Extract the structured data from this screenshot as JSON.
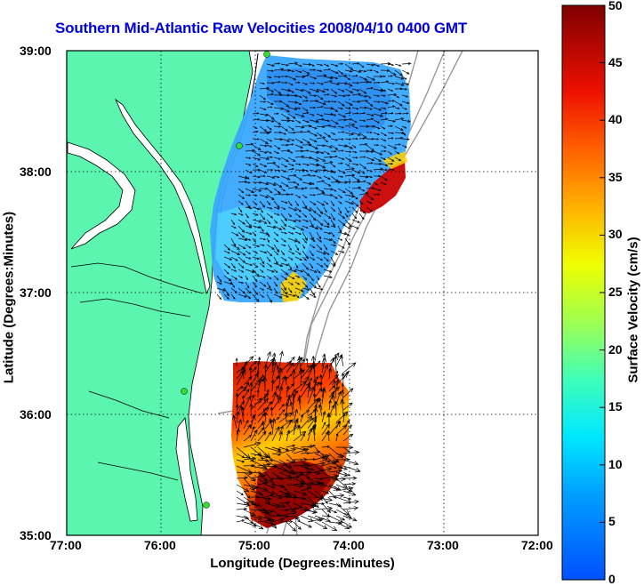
{
  "title": "Southern Mid-Atlantic Raw Velocities 2008/04/10 0400 GMT",
  "map": {
    "xlabel": "Longitude (Degrees:Minutes)",
    "ylabel": "Latitude (Degrees:Minutes)",
    "lon_range": [
      -77,
      -72
    ],
    "lat_range": [
      35,
      39
    ],
    "lon_ticks": [
      "77:00",
      "76:00",
      "75:00",
      "74:00",
      "73:00",
      "72:00"
    ],
    "lat_ticks": [
      "39:00",
      "38:00",
      "37:00",
      "36:00",
      "35:00"
    ],
    "grid": "dotted",
    "land_color": "#5cf5b0",
    "colors": {
      "frame": "#000000",
      "bathymetry": "#999999",
      "station": "#33dd33"
    }
  },
  "colorbar": {
    "label": "Surface Velocity (cm/s)",
    "min": 0,
    "max": 50,
    "ticks": [
      "0",
      "5",
      "10",
      "15",
      "20",
      "25",
      "30",
      "35",
      "40",
      "45",
      "50"
    ],
    "colormap": "jet"
  },
  "stations": [
    "station-1",
    "station-2",
    "station-3",
    "station-4"
  ],
  "icons": {
    "station": "green-dot-icon",
    "vector": "arrow-icon"
  }
}
